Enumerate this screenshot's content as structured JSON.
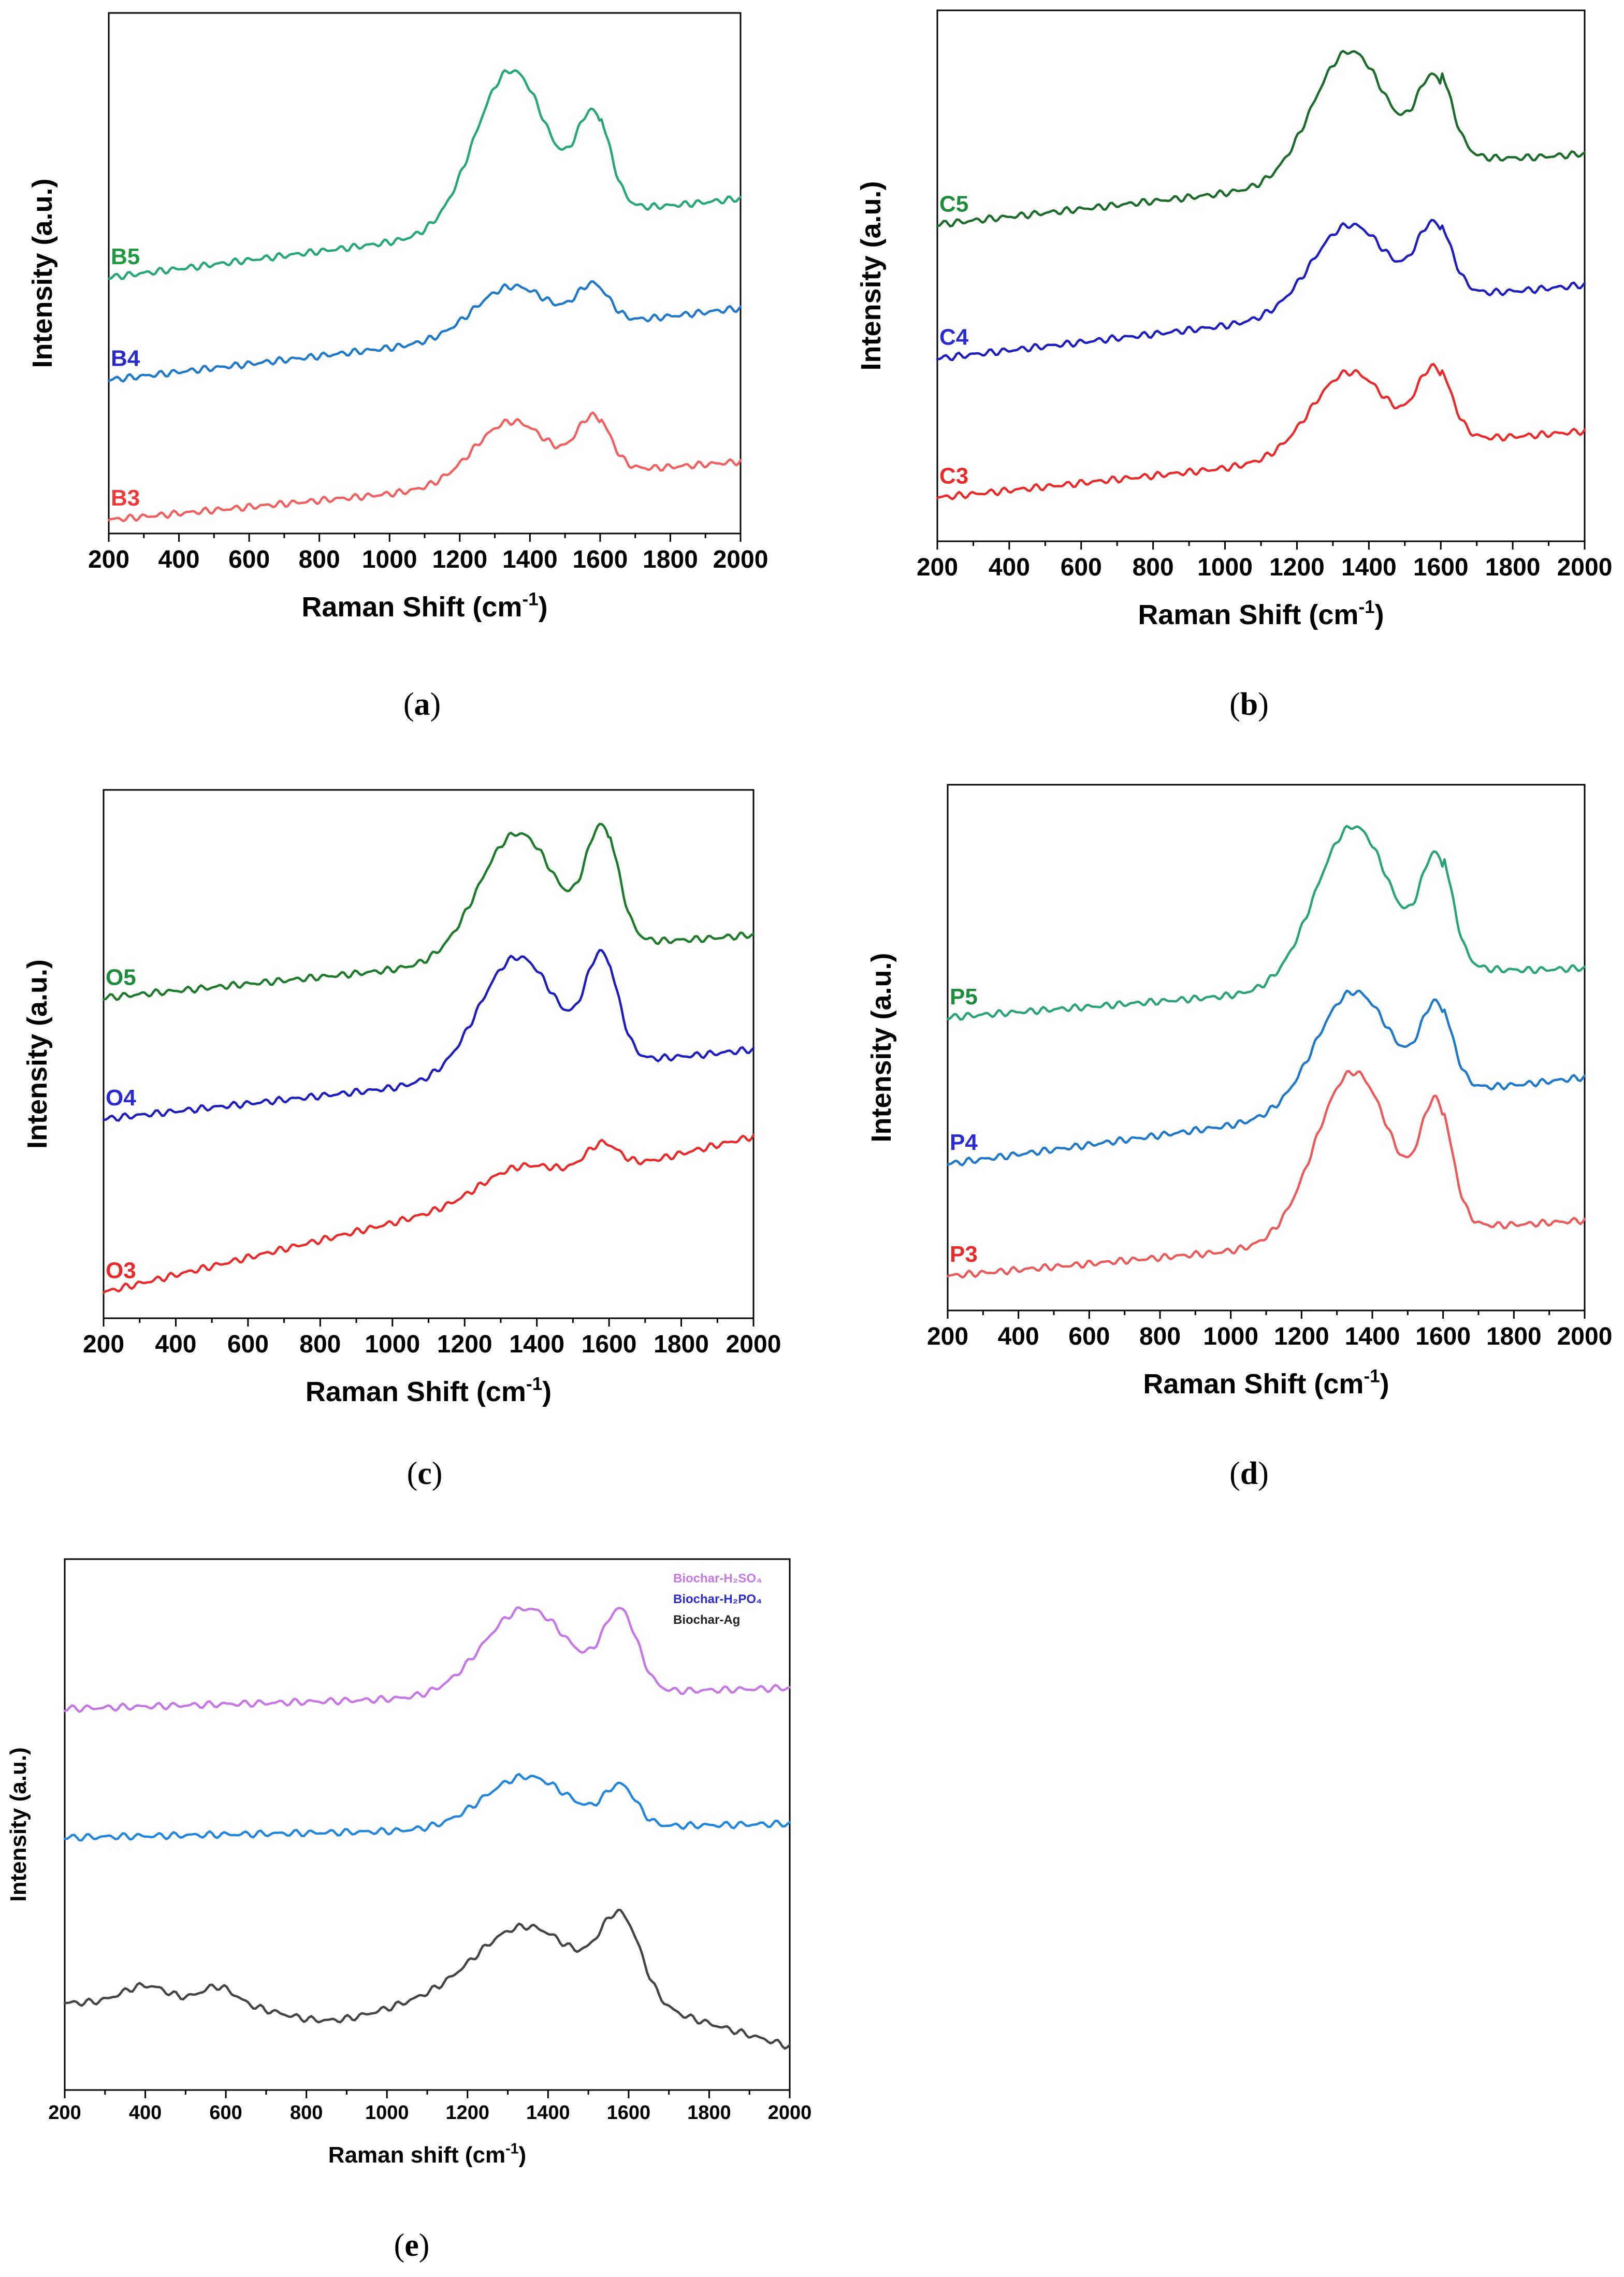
{
  "chart_data": [
    {
      "id": "a",
      "type": "line",
      "caption": "(a)",
      "xlabel": "Raman Shift (cm",
      "xlabel_sup": "-1",
      "xlabel_close": ")",
      "ylabel": "Intensity (a.u.)",
      "xlim": [
        200,
        2000
      ],
      "ylim": [
        0,
        3.05
      ],
      "xticks": [
        200,
        400,
        600,
        800,
        1000,
        1200,
        1400,
        1600,
        1800,
        2000
      ],
      "series": [
        {
          "name": "B5",
          "color": "#27a57b",
          "label_color": "#1d9a3e",
          "base": 1.5,
          "slope": 0.46,
          "d": 0.92,
          "g": 0.56,
          "wd": 145,
          "wg": 65,
          "tail": 0.05
        },
        {
          "name": "B4",
          "color": "#1f78c8",
          "label_color": "#2a2ac8",
          "base": 0.9,
          "slope": 0.42,
          "d": 0.28,
          "g": 0.22,
          "wd": 150,
          "wg": 65,
          "tail": 0.0
        },
        {
          "name": "B3",
          "color": "#f06060",
          "label_color": "#f03838",
          "base": 0.08,
          "slope": 0.34,
          "d": 0.36,
          "g": 0.32,
          "wd": 150,
          "wg": 65,
          "tail": 0.03
        }
      ]
    },
    {
      "id": "b",
      "type": "line",
      "caption": "(b)",
      "xlabel": "Raman Shift (cm",
      "xlabel_sup": "-1",
      "xlabel_close": ")",
      "ylabel": "Intensity (a.u.)",
      "xlim": [
        200,
        2000
      ],
      "ylim": [
        0,
        3.05
      ],
      "xticks": [
        200,
        400,
        600,
        800,
        1000,
        1200,
        1400,
        1600,
        1800,
        2000
      ],
      "series": [
        {
          "name": "C5",
          "color": "#1b6b2a",
          "label_color": "#1d8c3a",
          "base": 1.82,
          "slope": 0.4,
          "d": 0.74,
          "g": 0.5,
          "wd": 145,
          "wg": 65,
          "tail": 0.1
        },
        {
          "name": "C4",
          "color": "#1d1dbd",
          "label_color": "#2a2ad0",
          "base": 1.05,
          "slope": 0.42,
          "d": 0.5,
          "g": 0.42,
          "wd": 150,
          "wg": 65,
          "tail": 0.05
        },
        {
          "name": "C3",
          "color": "#e82a2a",
          "label_color": "#e82a2a",
          "base": 0.25,
          "slope": 0.38,
          "d": 0.48,
          "g": 0.42,
          "wd": 150,
          "wg": 65,
          "tail": 0.05
        }
      ]
    },
    {
      "id": "c",
      "type": "line",
      "caption": "(c)",
      "xlabel": "Raman Shift (cm",
      "xlabel_sup": "-1",
      "xlabel_close": ")",
      "ylabel": "Intensity (a.u.)",
      "xlim": [
        200,
        2000
      ],
      "ylim": [
        0,
        3.05
      ],
      "xticks": [
        200,
        400,
        600,
        800,
        1000,
        1200,
        1400,
        1600,
        1800,
        2000
      ],
      "series": [
        {
          "name": "O5",
          "color": "#1d7a2a",
          "label_color": "#1d8c3a",
          "base": 1.85,
          "slope": 0.36,
          "d": 0.72,
          "g": 0.66,
          "wd": 150,
          "wg": 62,
          "tail": 0.05
        },
        {
          "name": "O4",
          "color": "#1d1dbd",
          "label_color": "#2a2ad0",
          "base": 1.15,
          "slope": 0.4,
          "d": 0.68,
          "g": 0.6,
          "wd": 150,
          "wg": 62,
          "tail": 0.02
        },
        {
          "name": "O3",
          "color": "#e82a2a",
          "label_color": "#e82a2a",
          "base": 0.15,
          "slope": 0.9,
          "d": 0.15,
          "g": 0.16,
          "wd": 150,
          "wg": 65,
          "tail": 0.0
        }
      ]
    },
    {
      "id": "d",
      "type": "line",
      "caption": "(d)",
      "xlabel": "Raman Shift (cm",
      "xlabel_sup": "-1",
      "xlabel_close": ")",
      "ylabel": "Intensity (a.u.)",
      "xlim": [
        200,
        2000
      ],
      "ylim": [
        0,
        3.05
      ],
      "xticks": [
        200,
        400,
        600,
        800,
        1000,
        1200,
        1400,
        1600,
        1800,
        2000
      ],
      "series": [
        {
          "name": "P5",
          "color": "#2aa27a",
          "label_color": "#1d8c3a",
          "base": 1.7,
          "slope": 0.28,
          "d": 0.93,
          "g": 0.66,
          "wd": 150,
          "wg": 60,
          "tail": 0.1
        },
        {
          "name": "P4",
          "color": "#1f78c8",
          "label_color": "#2a2ad0",
          "base": 0.85,
          "slope": 0.5,
          "d": 0.68,
          "g": 0.5,
          "wd": 150,
          "wg": 60,
          "tail": 0.05
        },
        {
          "name": "P3",
          "color": "#ea5a5a",
          "label_color": "#e82a2a",
          "base": 0.2,
          "slope": 0.32,
          "d": 0.98,
          "g": 0.7,
          "wd": 150,
          "wg": 60,
          "tail": 0.05
        }
      ]
    },
    {
      "id": "e",
      "type": "line",
      "caption": "(e)",
      "xlabel": "Raman shift (cm",
      "xlabel_sup": "-1",
      "xlabel_close": ")",
      "ylabel": "Intensity (a.u.)",
      "xlim": [
        200,
        2000
      ],
      "ylim": [
        0,
        3.05
      ],
      "xticks": [
        200,
        400,
        600,
        800,
        1000,
        1200,
        1400,
        1600,
        1800,
        2000
      ],
      "legend_position": "top-right",
      "series": [
        {
          "name": "Biochar-H₂SO₄",
          "color": "#c776e6",
          "label_color": "#c776e6",
          "base": 2.19,
          "slope": 0.12,
          "d": 0.5,
          "g": 0.44,
          "wd": 150,
          "wg": 60,
          "tail": 0.0
        },
        {
          "name": "Biochar-H₂PO₄",
          "color": "#2286dc",
          "label_color": "#2a2ad0",
          "base": 1.45,
          "slope": 0.08,
          "d": 0.3,
          "g": 0.22,
          "wd": 150,
          "wg": 55,
          "tail": 0.0
        },
        {
          "name": "Biochar-Ag",
          "color": "#444444",
          "label_color": "#222222",
          "base": 0.5,
          "slope": 0.0,
          "d": 0.44,
          "g": 0.44,
          "wd": 180,
          "wg": 70,
          "tail": 0.0,
          "low": 0.1
        }
      ]
    }
  ]
}
